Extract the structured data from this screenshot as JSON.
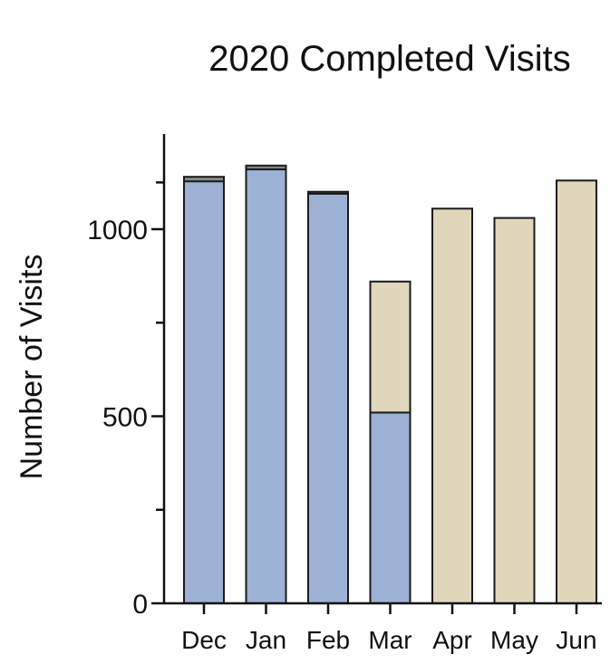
{
  "chart_data": {
    "type": "bar",
    "stacked": true,
    "title": "2020 Completed Visits",
    "xlabel": "",
    "ylabel": "Number of Visits",
    "categories": [
      "Dec",
      "Jan",
      "Feb",
      "Mar",
      "Apr",
      "May",
      "Jun"
    ],
    "series": [
      {
        "color": "#9db1d5",
        "values": [
          1128,
          1160,
          1095,
          510,
          0,
          0,
          0
        ]
      },
      {
        "color": "#e0d6bc",
        "values": [
          0,
          0,
          0,
          350,
          1055,
          1030,
          1130
        ]
      },
      {
        "color": "#8a8a8a",
        "values": [
          12,
          10,
          5,
          0,
          0,
          0,
          0
        ]
      }
    ],
    "ylim": [
      0,
      1250
    ],
    "yticks": [
      0,
      500,
      1000
    ],
    "grid": false,
    "legend": "none"
  }
}
